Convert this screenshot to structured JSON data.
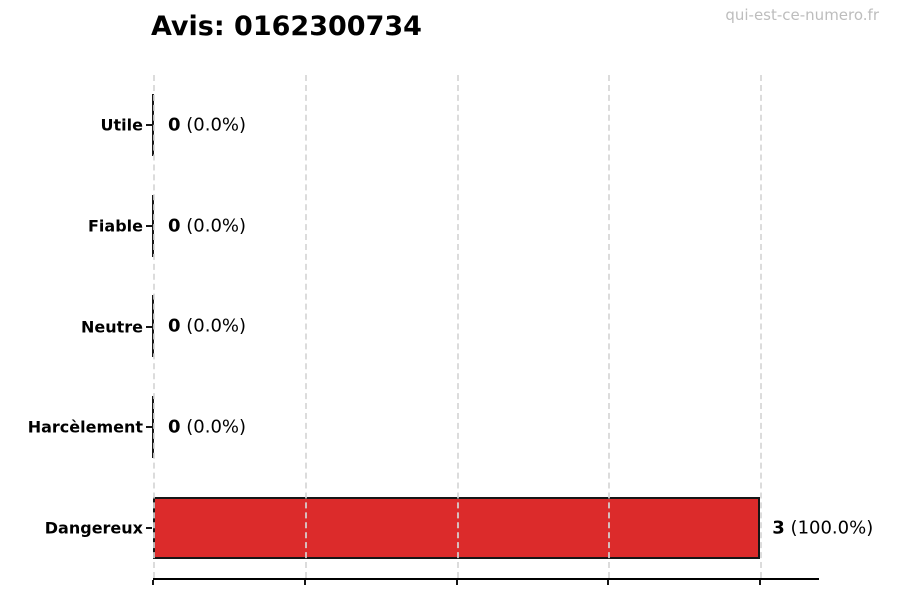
{
  "page": {
    "title": "Avis: 0162300734",
    "watermark": "qui-est-ce-numero.fr"
  },
  "chart_data": {
    "type": "bar",
    "orientation": "horizontal",
    "title": "Avis: 0162300734",
    "categories": [
      "Utile",
      "Fiable",
      "Neutre",
      "Harcèlement",
      "Dangereux"
    ],
    "values": [
      0,
      0,
      0,
      0,
      3
    ],
    "value_labels": [
      {
        "count": "0",
        "pct": "(0.0%)"
      },
      {
        "count": "0",
        "pct": "(0.0%)"
      },
      {
        "count": "0",
        "pct": "(0.0%)"
      },
      {
        "count": "0",
        "pct": "(0.0%)"
      },
      {
        "count": "3",
        "pct": "(100.0%)"
      }
    ],
    "bar_color": "#dc2b2b",
    "bar_edge_color": "#161616",
    "xlim": [
      0,
      3.29
    ],
    "xticks": [
      0,
      0.75,
      1.5,
      2.25,
      3.0
    ],
    "xtick_labels_visible": false,
    "grid": "vertical-dashed",
    "gridline_color": "#d6d6d6",
    "legend": "none"
  }
}
